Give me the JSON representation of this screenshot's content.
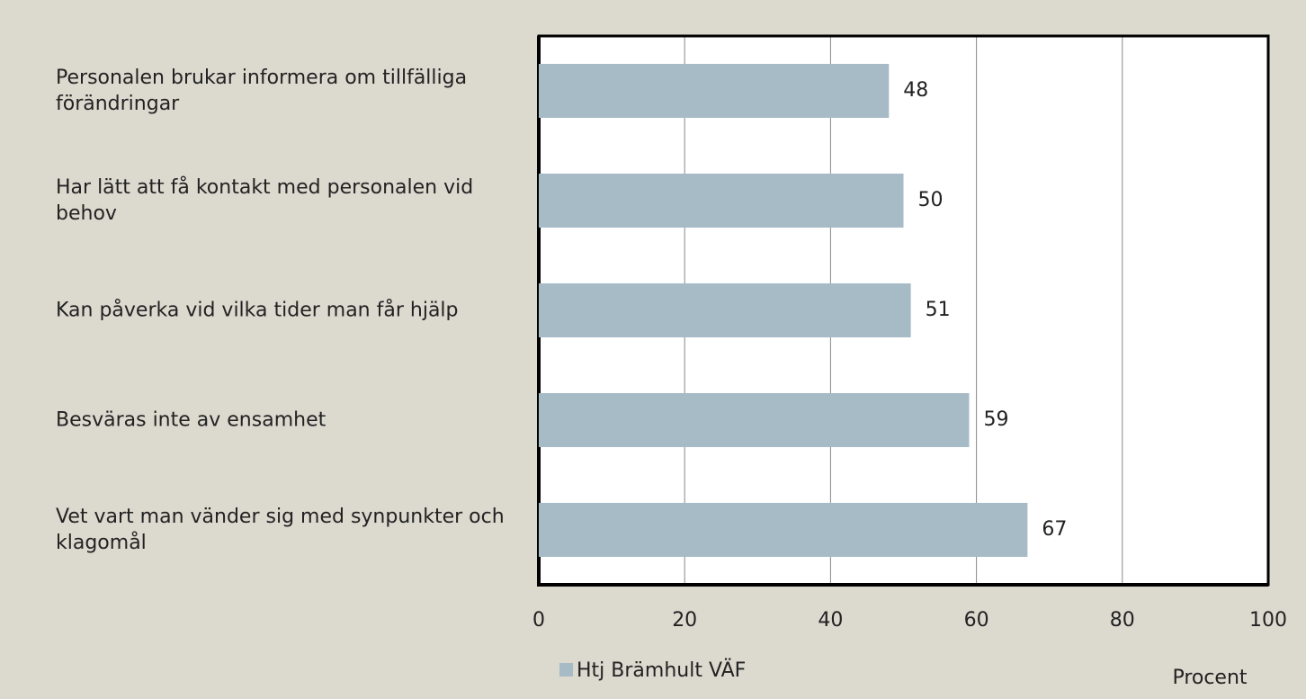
{
  "chart_data": {
    "type": "barh",
    "categories": [
      "Personalen brukar informera om tillfälliga förändringar",
      "Har lätt att få kontakt med personalen vid behov",
      "Kan påverka vid vilka tider man får hjälp",
      "Besväras inte av ensamhet",
      "Vet vart man vänder sig med synpunkter och klagomål"
    ],
    "series": [
      {
        "name": "Htj Brämhult VÄF",
        "color": "#a6bbc6",
        "values": [
          48,
          50,
          51,
          59,
          67
        ]
      }
    ],
    "xlim": [
      0,
      100
    ],
    "xticks": [
      0,
      20,
      40,
      60,
      80,
      100
    ],
    "xlabel": "Procent",
    "grid": true,
    "legend": "bottom"
  }
}
